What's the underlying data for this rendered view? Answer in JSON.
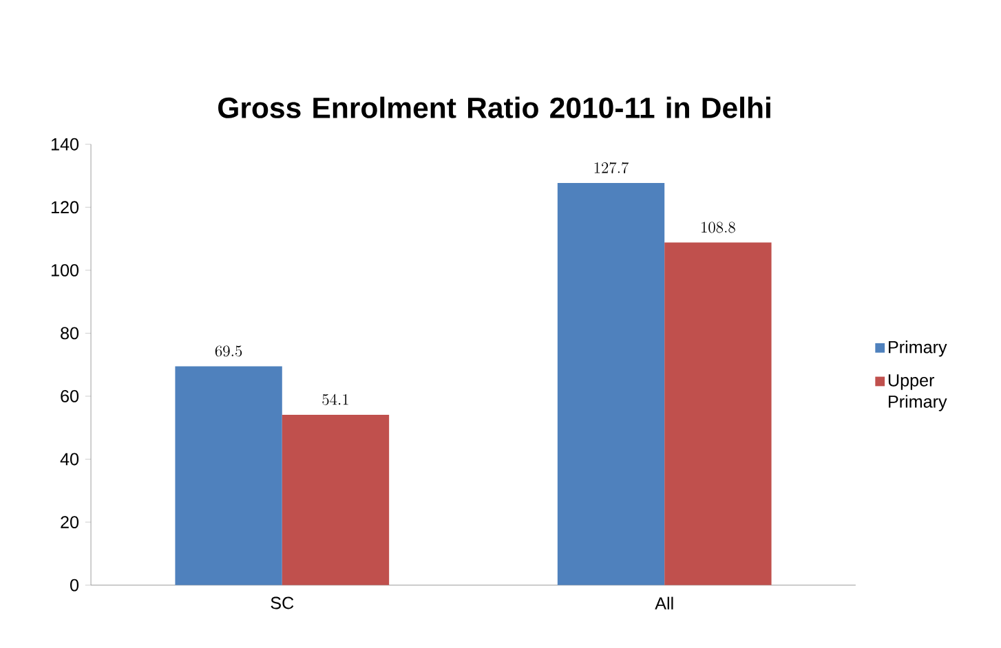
{
  "chart_data": {
    "type": "bar",
    "title": "Gross Enrolment Ratio 2010-11 in Delhi",
    "categories": [
      "SC",
      "All"
    ],
    "series": [
      {
        "name": "Primary",
        "color": "#4f81bd",
        "values": [
          69.5,
          127.7
        ]
      },
      {
        "name": "Upper Primary",
        "color": "#c0504d",
        "values": [
          54.1,
          108.8
        ]
      }
    ],
    "ylim": [
      0,
      140
    ],
    "yticks": [
      0,
      20,
      40,
      60,
      80,
      100,
      120,
      140
    ],
    "data_labels": true,
    "legend": "right",
    "grid": false
  }
}
